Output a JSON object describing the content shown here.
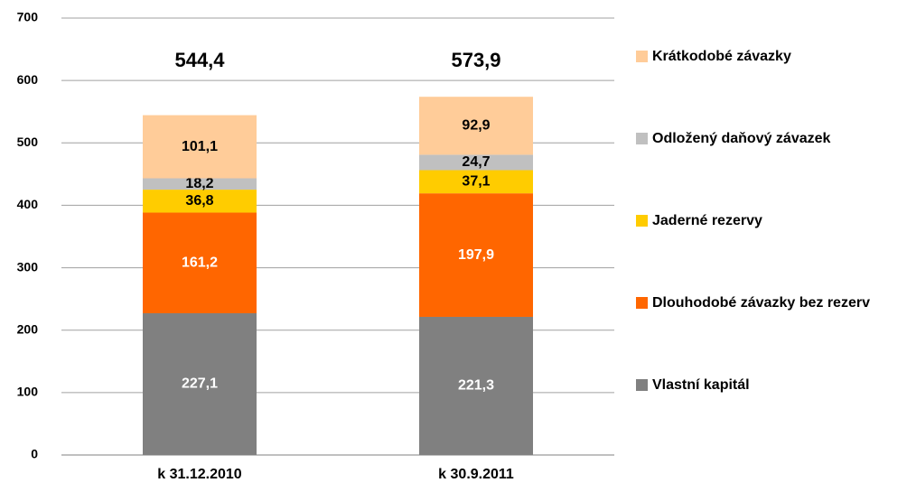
{
  "chart_data": {
    "type": "stacked-bar",
    "categories": [
      "k 31.12.2010",
      "k 30.9.2011"
    ],
    "series": [
      {
        "name": "Vlastní kapitál",
        "color": "#808080",
        "label_color": "#ffffff",
        "values": [
          227.1,
          221.3
        ],
        "value_labels": [
          "227,1",
          "221,3"
        ]
      },
      {
        "name": "Dlouhodobé závazky bez rezerv",
        "color": "#ff6600",
        "label_color": "#ffffff",
        "values": [
          161.2,
          197.9
        ],
        "value_labels": [
          "161,2",
          "197,9"
        ]
      },
      {
        "name": "Jaderné rezervy",
        "color": "#ffcc00",
        "label_color": "#000000",
        "values": [
          36.8,
          37.1
        ],
        "value_labels": [
          "36,8",
          "37,1"
        ]
      },
      {
        "name": "Odložený daňový závazek",
        "color": "#c0c0c0",
        "label_color": "#000000",
        "values": [
          18.2,
          24.7
        ],
        "value_labels": [
          "18,2",
          "24,7"
        ]
      },
      {
        "name": "Krátkodobé závazky",
        "color": "#ffcc99",
        "label_color": "#000000",
        "values": [
          101.1,
          92.9
        ],
        "value_labels": [
          "101,1",
          "92,9"
        ]
      }
    ],
    "totals": [
      544.4,
      573.9
    ],
    "total_labels": [
      "544,4",
      "573,9"
    ],
    "ylim": [
      0,
      700
    ],
    "yticks": [
      0,
      100,
      200,
      300,
      400,
      500,
      600,
      700
    ],
    "grid": true,
    "legend": "right"
  }
}
